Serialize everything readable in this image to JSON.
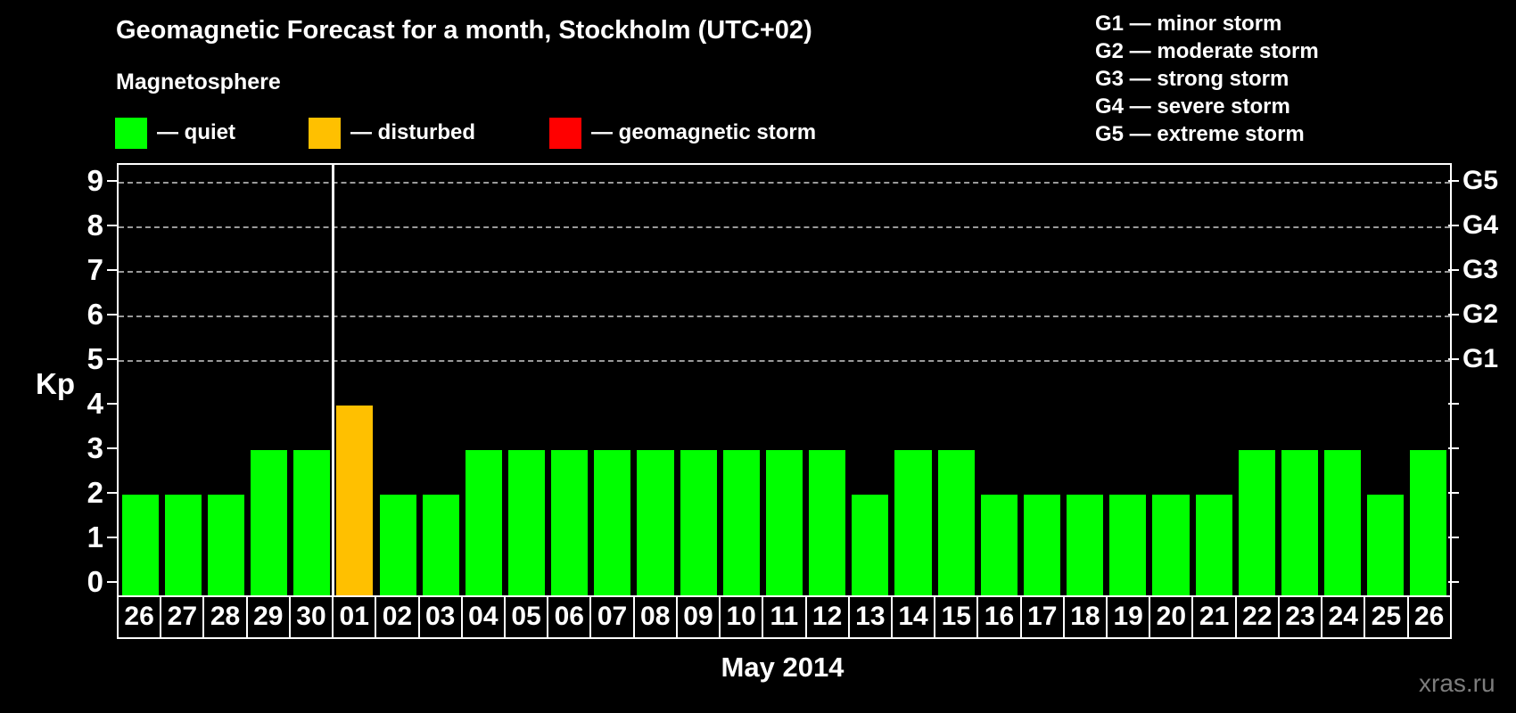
{
  "header": {
    "title": "Geomagnetic Forecast for a month, Stockholm (UTC+02)",
    "subtitle": "Magnetosphere"
  },
  "legend": {
    "items": [
      {
        "name": "quiet",
        "label": "— quiet",
        "color": "#00ff00"
      },
      {
        "name": "disturbed",
        "label": "— disturbed",
        "color": "#ffc000"
      },
      {
        "name": "storm",
        "label": "— geomagnetic storm",
        "color": "#ff0000"
      }
    ]
  },
  "storm_scale_legend": [
    "G1 — minor storm",
    "G2 — moderate storm",
    "G3 — strong storm",
    "G4 — severe storm",
    "G5 — extreme storm"
  ],
  "watermark": "xras.ru",
  "chart_data": {
    "type": "bar",
    "title": "Geomagnetic Forecast for a month, Stockholm (UTC+02)",
    "xlabel": "May 2014",
    "ylabel": "Kp",
    "ylim": [
      0,
      9
    ],
    "y_ticks": [
      0,
      1,
      2,
      3,
      4,
      5,
      6,
      7,
      8,
      9
    ],
    "gridline_levels": [
      5,
      6,
      7,
      8,
      9
    ],
    "grid": "dashed-horizontal",
    "legend_position": "top",
    "categories": [
      "26",
      "27",
      "28",
      "29",
      "30",
      "01",
      "02",
      "03",
      "04",
      "05",
      "06",
      "07",
      "08",
      "09",
      "10",
      "11",
      "12",
      "13",
      "14",
      "15",
      "16",
      "17",
      "18",
      "19",
      "20",
      "21",
      "22",
      "23",
      "24",
      "25",
      "26"
    ],
    "values": [
      2,
      2,
      2,
      3,
      3,
      4,
      2,
      2,
      3,
      3,
      3,
      3,
      3,
      3,
      3,
      3,
      3,
      2,
      3,
      3,
      2,
      2,
      2,
      2,
      2,
      2,
      3,
      3,
      3,
      2,
      3
    ],
    "statuses": [
      "quiet",
      "quiet",
      "quiet",
      "quiet",
      "quiet",
      "disturbed",
      "quiet",
      "quiet",
      "quiet",
      "quiet",
      "quiet",
      "quiet",
      "quiet",
      "quiet",
      "quiet",
      "quiet",
      "quiet",
      "quiet",
      "quiet",
      "quiet",
      "quiet",
      "quiet",
      "quiet",
      "quiet",
      "quiet",
      "quiet",
      "quiet",
      "quiet",
      "quiet",
      "quiet",
      "quiet"
    ],
    "bar_colors": {
      "quiet": "#00ff00",
      "disturbed": "#ffc000",
      "storm": "#ff0000"
    },
    "divider_after_index": 4,
    "right_axis": [
      {
        "label": "G1",
        "kp": 5
      },
      {
        "label": "G2",
        "kp": 6
      },
      {
        "label": "G3",
        "kp": 7
      },
      {
        "label": "G4",
        "kp": 8
      },
      {
        "label": "G5",
        "kp": 9
      }
    ]
  }
}
